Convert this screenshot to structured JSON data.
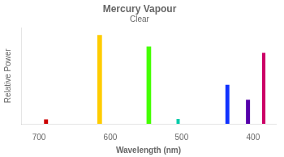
{
  "chart_data": {
    "type": "bar",
    "title": "Mercury Vapour",
    "subtitle": "Clear",
    "xlabel": "Wavelength (nm)",
    "ylabel": "Relative Power",
    "x": [
      690,
      615,
      546,
      505,
      436,
      407,
      385
    ],
    "values": [
      0.05,
      1.0,
      0.87,
      0.055,
      0.44,
      0.27,
      0.8
    ],
    "widths": [
      6,
      7,
      7,
      5,
      6,
      6,
      5
    ],
    "colors": [
      "#cc0000",
      "#ffcc00",
      "#44ff00",
      "#00ccaa",
      "#1133ff",
      "#5500aa",
      "#cc0066"
    ],
    "xlim": [
      725,
      368
    ],
    "xticks": [
      700,
      600,
      500,
      400
    ],
    "ylim": [
      0,
      1.08
    ],
    "grid": false,
    "tick_labels": "x"
  }
}
